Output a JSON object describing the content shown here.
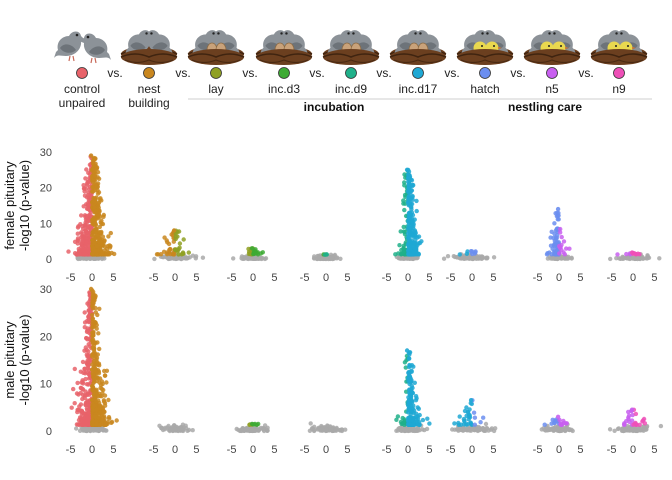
{
  "header": {
    "stages": [
      {
        "key": "control",
        "lines": [
          "control",
          "unpaired"
        ],
        "color": "#e8636a",
        "icon": "two-pigeons-icon"
      },
      {
        "key": "bldg",
        "lines": [
          "nest",
          "building"
        ],
        "color": "#c9871f",
        "icon": "pigeons-in-nest-icon"
      },
      {
        "key": "lay",
        "lines": [
          "lay"
        ],
        "color": "#8fa023",
        "icon": "pigeons-nest-eggs-icon"
      },
      {
        "key": "inc.d3",
        "lines": [
          "inc.d3"
        ],
        "color": "#3daa34",
        "icon": "pigeons-nest-eggs-icon"
      },
      {
        "key": "inc.d9",
        "lines": [
          "inc.d9"
        ],
        "color": "#20b08a",
        "icon": "pigeons-nest-eggs-icon"
      },
      {
        "key": "inc.d17",
        "lines": [
          "inc.d17"
        ],
        "color": "#1fa8d4",
        "icon": "pigeons-nest-eggs-icon"
      },
      {
        "key": "hatch",
        "lines": [
          "hatch"
        ],
        "color": "#6b8ef0",
        "icon": "pigeons-nest-chicks-icon"
      },
      {
        "key": "n5",
        "lines": [
          "n5"
        ],
        "color": "#c85ff0",
        "icon": "pigeons-nest-chicks-icon"
      },
      {
        "key": "n9",
        "lines": [
          "n9"
        ],
        "color": "#ee4fb7",
        "icon": "pigeons-nest-chicks-icon"
      }
    ],
    "separator": "vs.",
    "groups": [
      {
        "label": "incubation"
      },
      {
        "label": "nestling care"
      }
    ]
  },
  "chart_data": {
    "type": "scatter",
    "panels": [
      {
        "ylabel_lines": [
          "female pituitary",
          "-log10 (p-value)"
        ],
        "ylim": [
          0,
          30
        ],
        "yticks": [
          0,
          10,
          20,
          30
        ],
        "comparisons": [
          {
            "name": "control vs. nest building",
            "left_color": "#e8636a",
            "right_color": "#c9871f",
            "left_n": 260,
            "right_n": 320,
            "peak": 29,
            "spread": 1.8
          },
          {
            "name": "nest building vs. lay",
            "left_color": "#c9871f",
            "right_color": "#8fa023",
            "left_n": 30,
            "right_n": 24,
            "peak": 8,
            "spread": 2.3
          },
          {
            "name": "lay vs. inc.d3",
            "left_color": "#8fa023",
            "right_color": "#3daa34",
            "left_n": 14,
            "right_n": 14,
            "peak": 3,
            "spread": 1.8
          },
          {
            "name": "inc.d3 vs. inc.d9",
            "left_color": "#3daa34",
            "right_color": "#20b08a",
            "left_n": 2,
            "right_n": 2,
            "peak": 1.2,
            "spread": 1.6
          },
          {
            "name": "inc.d9 vs. inc.d17",
            "left_color": "#20b08a",
            "right_color": "#1fa8d4",
            "left_n": 60,
            "right_n": 230,
            "peak": 25,
            "spread": 1.3
          },
          {
            "name": "inc.d17 vs. hatch",
            "left_color": "#1fa8d4",
            "right_color": "#6b8ef0",
            "left_n": 3,
            "right_n": 5,
            "peak": 2.2,
            "spread": 2.2
          },
          {
            "name": "hatch vs. n5",
            "left_color": "#6b8ef0",
            "right_color": "#c85ff0",
            "left_n": 70,
            "right_n": 14,
            "peak": 14,
            "spread": 1.2
          },
          {
            "name": "n5 vs. n9",
            "left_color": "#c85ff0",
            "right_color": "#ee4fb7",
            "left_n": 5,
            "right_n": 8,
            "peak": 1.8,
            "spread": 2.3
          }
        ]
      },
      {
        "ylabel_lines": [
          "male pituitary",
          "-log10 (p-value)"
        ],
        "ylim": [
          0,
          30
        ],
        "yticks": [
          0,
          10,
          20,
          30
        ],
        "comparisons": [
          {
            "name": "control vs. nest building",
            "left_color": "#e8636a",
            "right_color": "#c9871f",
            "left_n": 300,
            "right_n": 360,
            "peak": 30,
            "spread": 1.8
          },
          {
            "name": "nest building vs. lay",
            "left_color": "#c9871f",
            "right_color": "#8fa023",
            "left_n": 0,
            "right_n": 0,
            "peak": 0.5,
            "spread": 2.0
          },
          {
            "name": "lay vs. inc.d3",
            "left_color": "#8fa023",
            "right_color": "#3daa34",
            "left_n": 3,
            "right_n": 4,
            "peak": 1.5,
            "spread": 2.0
          },
          {
            "name": "inc.d3 vs. inc.d9",
            "left_color": "#3daa34",
            "right_color": "#20b08a",
            "left_n": 0,
            "right_n": 0,
            "peak": 0.4,
            "spread": 2.0
          },
          {
            "name": "inc.d9 vs. inc.d17",
            "left_color": "#20b08a",
            "right_color": "#1fa8d4",
            "left_n": 25,
            "right_n": 150,
            "peak": 17,
            "spread": 1.5
          },
          {
            "name": "inc.d17 vs. hatch",
            "left_color": "#1fa8d4",
            "right_color": "#6b8ef0",
            "left_n": 28,
            "right_n": 6,
            "peak": 6.5,
            "spread": 2.6
          },
          {
            "name": "hatch vs. n5",
            "left_color": "#6b8ef0",
            "right_color": "#c85ff0",
            "left_n": 10,
            "right_n": 10,
            "peak": 3,
            "spread": 2.0
          },
          {
            "name": "n5 vs. n9",
            "left_color": "#c85ff0",
            "right_color": "#ee4fb7",
            "left_n": 14,
            "right_n": 12,
            "peak": 4.5,
            "spread": 2.3
          }
        ]
      }
    ],
    "xlim": [
      -7,
      7
    ],
    "xticks": [
      -5,
      0,
      5
    ],
    "nonsig_color": "#a9a9a9",
    "grid": false,
    "legend": "none"
  }
}
